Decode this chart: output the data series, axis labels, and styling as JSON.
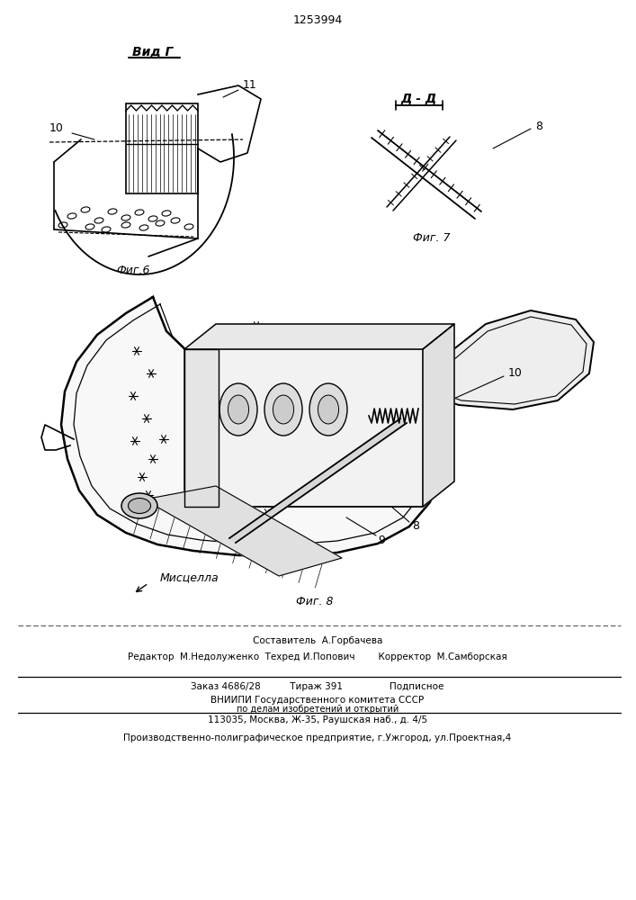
{
  "patent_number": "1253994",
  "background_color": "#ffffff",
  "line_color": "#000000",
  "fig_width": 7.07,
  "fig_height": 10.0,
  "fig6_label": "Фиг.6",
  "fig7_label": "Фиг. 7",
  "fig8_label": "Фиг. 8",
  "vid_g_label": "Вид Г",
  "dd_label": "Д - Д",
  "label_10_fig6": "10",
  "label_11_fig6": "11",
  "label_8_fig7": "8",
  "label_10_fig8": "10",
  "label_8_fig8": "8",
  "label_9_fig8": "9",
  "label_misce": "Мисцелла",
  "footer_line1": "Составитель  А.Горбачева",
  "footer_line2": "Редактор  М.Недолуженко  Техред И.Попович        Корректор  М.Самборская",
  "footer_line3": "Заказ 4686/28          Тираж 391                Подписное",
  "footer_line4": "ВНИИПИ Государственного комитета СССР",
  "footer_line5": "по делам изобретений и открытий",
  "footer_line6": "113035, Москва, Ж-35, Раушская наб., д. 4/5",
  "footer_line7": "Производственно-полиграфическое предприятие, г.Ужгород, ул.Проектная,4"
}
